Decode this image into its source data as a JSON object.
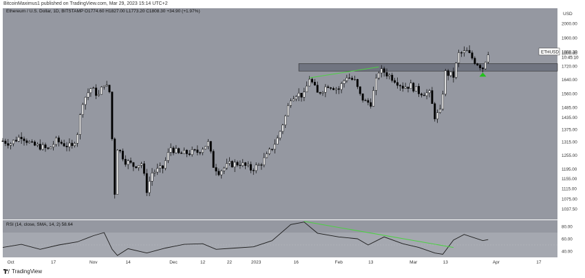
{
  "header": {
    "published_line": "BitcoinMaximus1 published on TradingView.com, Mar 29, 2023 15:14 UTC+2",
    "symbol_title": "Ethereum / U.S. Dollar, 1D, BITSTAMP",
    "ohlc": "O1774.60 H1827.00 L1773.20 C1808.30 +34.90 (+1.97%)"
  },
  "price_axis": {
    "currency": "USD",
    "ticks": [
      "2000.00",
      "1900.00",
      "1800.00",
      "1720.00",
      "1640.00",
      "1560.00",
      "1485.00",
      "1435.00",
      "1375.00",
      "1315.00",
      "1255.00",
      "1195.00",
      "1155.00",
      "1115.00",
      "1075.00",
      "1037.50"
    ],
    "tag_symbol": "ETHUSD",
    "tag_price": "1808.30",
    "tag_countdown": "10:45:10"
  },
  "rsi": {
    "title": "RSI (14, close, SMA, 14, 2) 58.64",
    "ticks": [
      "80.00",
      "60.00",
      "40.00"
    ]
  },
  "time_axis": {
    "ticks": [
      "Oct",
      "17",
      "Nov",
      "14",
      "Dec",
      "12",
      "22",
      "2023",
      "16",
      "Feb",
      "13",
      "Mar",
      "13",
      "Apr",
      "17"
    ]
  },
  "footer": {
    "brand": "TradingView"
  },
  "colors": {
    "background": "#9598a1",
    "candle": "#ffffff",
    "candle_dark": "#000000",
    "resistance_zone": "#707480",
    "trendline": "#4cd142",
    "arrow": "#21c21b",
    "rsi_line": "#1a1a1a",
    "rsi_band": "#a5a8b0"
  },
  "chart_data": {
    "type": "candlestick",
    "title": "Ethereum / U.S. Dollar, 1D, BITSTAMP",
    "yscale": "log",
    "ylim": [
      1000,
      2110
    ],
    "x_start": "2022-09-28",
    "x_end": "2023-04-24",
    "close_series": [
      [
        "2022-09-28",
        1320
      ],
      [
        "2022-10-01",
        1310
      ],
      [
        "2022-10-05",
        1345
      ],
      [
        "2022-10-09",
        1300
      ],
      [
        "2022-10-12",
        1295
      ],
      [
        "2022-10-15",
        1280
      ],
      [
        "2022-10-18",
        1320
      ],
      [
        "2022-10-21",
        1305
      ],
      [
        "2022-10-24",
        1290
      ],
      [
        "2022-10-26",
        1360
      ],
      [
        "2022-10-28",
        1520
      ],
      [
        "2022-10-31",
        1590
      ],
      [
        "2022-11-03",
        1550
      ],
      [
        "2022-11-05",
        1620
      ],
      [
        "2022-11-07",
        1570
      ],
      [
        "2022-11-08",
        1330
      ],
      [
        "2022-11-09",
        1100
      ],
      [
        "2022-11-10",
        1290
      ],
      [
        "2022-11-13",
        1230
      ],
      [
        "2022-11-16",
        1210
      ],
      [
        "2022-11-19",
        1220
      ],
      [
        "2022-11-21",
        1110
      ],
      [
        "2022-11-23",
        1180
      ],
      [
        "2022-11-27",
        1200
      ],
      [
        "2022-11-30",
        1290
      ],
      [
        "2022-12-03",
        1260
      ],
      [
        "2022-12-06",
        1265
      ],
      [
        "2022-12-10",
        1270
      ],
      [
        "2022-12-14",
        1310
      ],
      [
        "2022-12-16",
        1210
      ],
      [
        "2022-12-18",
        1185
      ],
      [
        "2022-12-22",
        1215
      ],
      [
        "2022-12-26",
        1220
      ],
      [
        "2022-12-30",
        1195
      ],
      [
        "2023-01-02",
        1210
      ],
      [
        "2023-01-05",
        1250
      ],
      [
        "2023-01-09",
        1330
      ],
      [
        "2023-01-12",
        1440
      ],
      [
        "2023-01-14",
        1540
      ],
      [
        "2023-01-16",
        1560
      ],
      [
        "2023-01-19",
        1550
      ],
      [
        "2023-01-21",
        1650
      ],
      [
        "2023-01-24",
        1560
      ],
      [
        "2023-01-28",
        1610
      ],
      [
        "2023-02-01",
        1585
      ],
      [
        "2023-02-04",
        1660
      ],
      [
        "2023-02-07",
        1630
      ],
      [
        "2023-02-09",
        1550
      ],
      [
        "2023-02-11",
        1515
      ],
      [
        "2023-02-13",
        1510
      ],
      [
        "2023-02-16",
        1690
      ],
      [
        "2023-02-18",
        1685
      ],
      [
        "2023-02-22",
        1640
      ],
      [
        "2023-02-25",
        1600
      ],
      [
        "2023-02-28",
        1605
      ],
      [
        "2023-03-03",
        1570
      ],
      [
        "2023-03-07",
        1560
      ],
      [
        "2023-03-09",
        1440
      ],
      [
        "2023-03-11",
        1460
      ],
      [
        "2023-03-13",
        1680
      ],
      [
        "2023-03-16",
        1660
      ],
      [
        "2023-03-18",
        1795
      ],
      [
        "2023-03-21",
        1810
      ],
      [
        "2023-03-24",
        1750
      ],
      [
        "2023-03-27",
        1710
      ],
      [
        "2023-03-29",
        1808
      ]
    ],
    "annotations": {
      "resistance_zone": [
        1690,
        1735
      ],
      "price_trendline": [
        [
          "2023-01-21",
          1650
        ],
        [
          "2023-02-16",
          1715
        ]
      ],
      "rsi_trendline": [
        [
          "2023-01-19",
          88
        ],
        [
          "2023-03-16",
          46
        ]
      ],
      "green_arrow": [
        "2023-03-27",
        1665
      ]
    },
    "rsi_series": {
      "name": "RSI (14, close, SMA, 14, 2)",
      "last_value": 58.64,
      "ylim": [
        30,
        90
      ],
      "band": [
        30,
        70
      ],
      "points": [
        [
          "2022-09-28",
          46
        ],
        [
          "2022-10-05",
          51
        ],
        [
          "2022-10-12",
          43
        ],
        [
          "2022-10-19",
          50
        ],
        [
          "2022-10-26",
          55
        ],
        [
          "2022-11-01",
          65
        ],
        [
          "2022-11-05",
          70
        ],
        [
          "2022-11-08",
          43
        ],
        [
          "2022-11-10",
          33
        ],
        [
          "2022-11-14",
          44
        ],
        [
          "2022-11-21",
          37
        ],
        [
          "2022-11-28",
          45
        ],
        [
          "2022-12-05",
          51
        ],
        [
          "2022-12-12",
          52
        ],
        [
          "2022-12-17",
          43
        ],
        [
          "2022-12-24",
          45
        ],
        [
          "2022-12-31",
          47
        ],
        [
          "2023-01-07",
          57
        ],
        [
          "2023-01-14",
          83
        ],
        [
          "2023-01-19",
          87
        ],
        [
          "2023-01-24",
          69
        ],
        [
          "2023-02-01",
          63
        ],
        [
          "2023-02-08",
          60
        ],
        [
          "2023-02-12",
          50
        ],
        [
          "2023-02-18",
          63
        ],
        [
          "2023-02-25",
          52
        ],
        [
          "2023-03-03",
          46
        ],
        [
          "2023-03-09",
          37
        ],
        [
          "2023-03-12",
          35
        ],
        [
          "2023-03-16",
          58
        ],
        [
          "2023-03-20",
          67
        ],
        [
          "2023-03-27",
          57
        ],
        [
          "2023-03-29",
          58.64
        ]
      ]
    }
  }
}
